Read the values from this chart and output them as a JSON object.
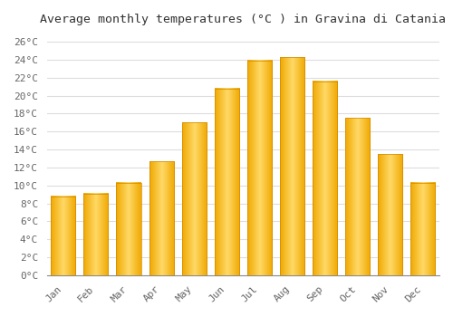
{
  "title": "Average monthly temperatures (°C ) in Gravina di Catania",
  "months": [
    "Jan",
    "Feb",
    "Mar",
    "Apr",
    "May",
    "Jun",
    "Jul",
    "Aug",
    "Sep",
    "Oct",
    "Nov",
    "Dec"
  ],
  "temperatures": [
    8.8,
    9.1,
    10.3,
    12.7,
    17.0,
    20.8,
    23.9,
    24.3,
    21.6,
    17.5,
    13.5,
    10.3
  ],
  "bar_color_center": "#FFD966",
  "bar_color_edge": "#F0A800",
  "background_color": "#FFFFFF",
  "grid_color": "#DDDDDD",
  "title_fontsize": 9.5,
  "tick_fontsize": 8,
  "ylim": [
    0,
    27
  ],
  "yticks": [
    0,
    2,
    4,
    6,
    8,
    10,
    12,
    14,
    16,
    18,
    20,
    22,
    24,
    26
  ],
  "bar_width": 0.75
}
